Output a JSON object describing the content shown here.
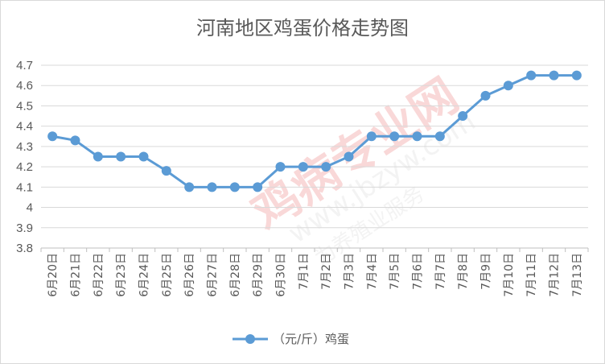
{
  "chart_data": {
    "type": "line",
    "title": "河南地区鸡蛋价格走势图",
    "xlabel": "",
    "ylabel": "",
    "categories": [
      "6月20日",
      "6月21日",
      "6月22日",
      "6月23日",
      "6月24日",
      "6月25日",
      "6月26日",
      "6月27日",
      "6月28日",
      "6月29日",
      "6月30日",
      "7月1日",
      "7月2日",
      "7月3日",
      "7月4日",
      "7月5日",
      "7月6日",
      "7月7日",
      "7月8日",
      "7月9日",
      "7月10日",
      "7月11日",
      "7月12日",
      "7月13日"
    ],
    "series": [
      {
        "name": "（元/斤）鸡蛋",
        "color": "#5b9bd5",
        "values": [
          4.35,
          4.33,
          4.25,
          4.25,
          4.25,
          4.18,
          4.1,
          4.1,
          4.1,
          4.1,
          4.2,
          4.2,
          4.2,
          4.25,
          4.35,
          4.35,
          4.35,
          4.35,
          4.45,
          4.55,
          4.6,
          4.65,
          4.65,
          4.65
        ]
      }
    ],
    "ylim": [
      3.8,
      4.7
    ],
    "yticks": [
      "3.8",
      "3.9",
      "4",
      "4.1",
      "4.2",
      "4.3",
      "4.4",
      "4.5",
      "4.6",
      "4.7"
    ],
    "grid": true,
    "legend_position": "bottom",
    "watermark": {
      "text_cn": "鸡病专业网",
      "text_url": "www.jbzyw.com",
      "text_small": "为养殖业服务"
    }
  }
}
